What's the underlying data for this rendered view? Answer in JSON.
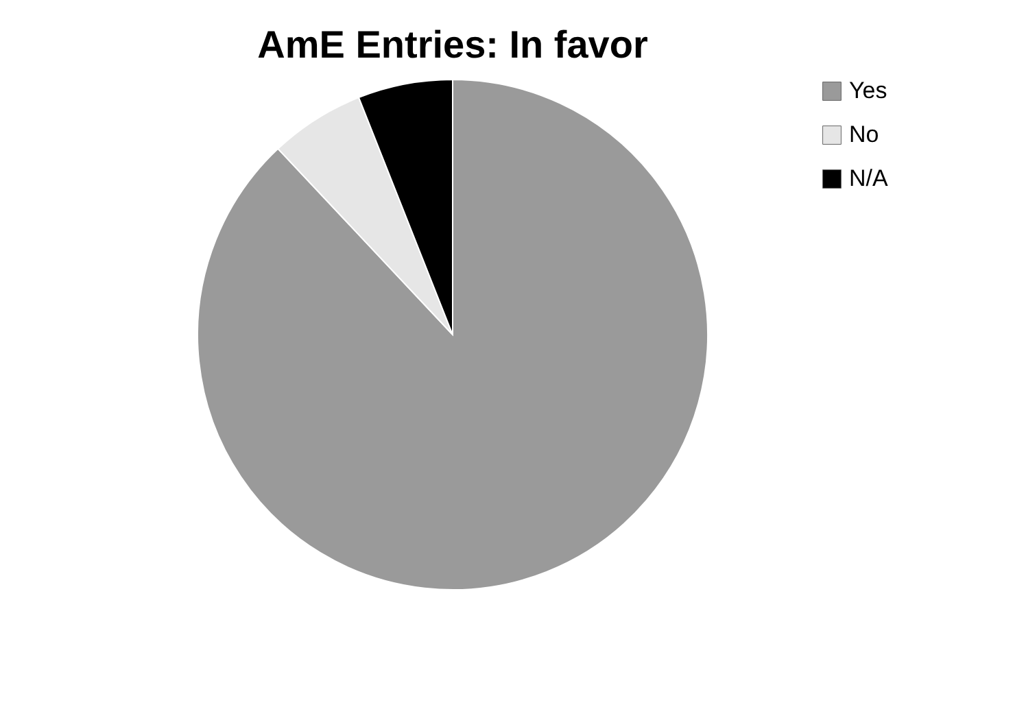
{
  "chart_data": {
    "type": "pie",
    "title": "AmE Entries: In favor",
    "categories": [
      "Yes",
      "No",
      "N/A"
    ],
    "values": [
      88,
      6,
      6
    ],
    "colors": [
      "#9a9a9a",
      "#e6e6e6",
      "#000000"
    ],
    "legend": "right"
  }
}
